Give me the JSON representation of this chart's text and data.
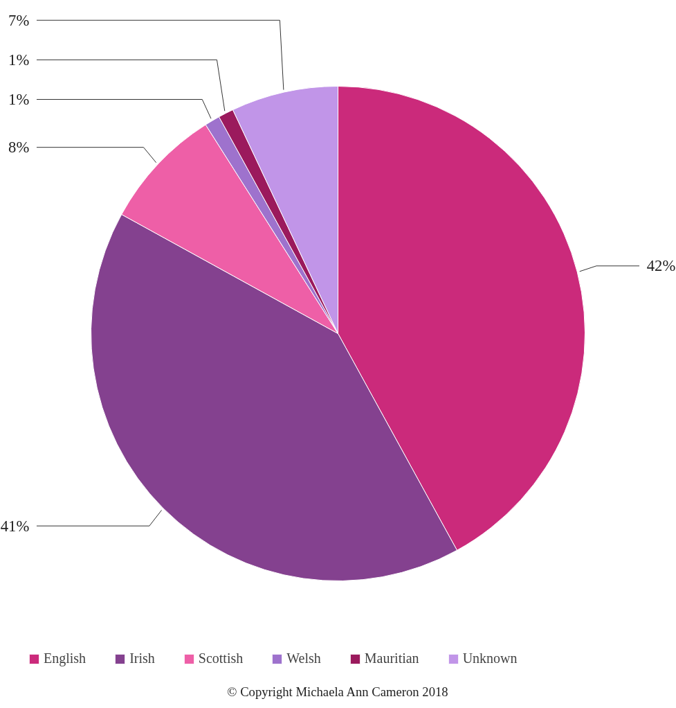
{
  "chart_data": {
    "type": "pie",
    "categories": [
      "English",
      "Irish",
      "Scottish",
      "Welsh",
      "Mauritian",
      "Unknown"
    ],
    "values": [
      42,
      41,
      8,
      1,
      1,
      7
    ],
    "value_labels": [
      "42%",
      "41%",
      "8%",
      "1%",
      "1%",
      "7%"
    ],
    "colors": [
      "#cb2a7b",
      "#84418f",
      "#ee5fa7",
      "#9e72cd",
      "#9b1a5d",
      "#c195e8"
    ],
    "legend": "bottom",
    "annotations": [
      "© Copyright Michaela Ann Cameron 2018"
    ]
  }
}
